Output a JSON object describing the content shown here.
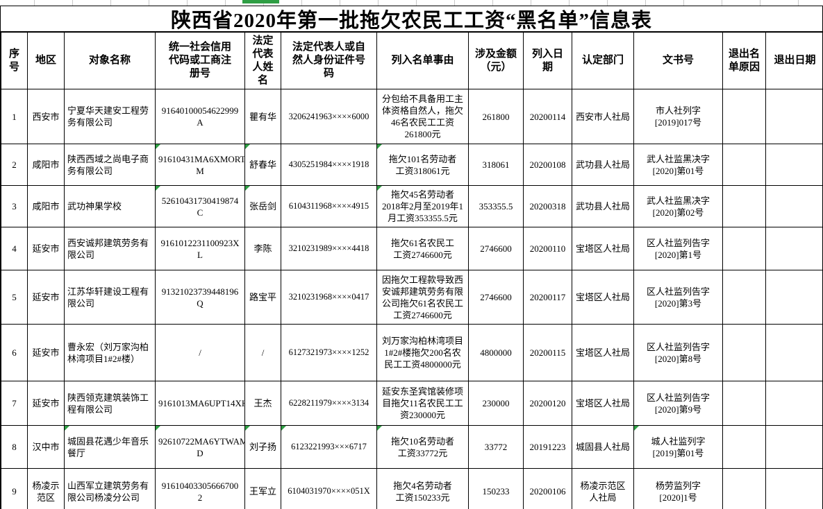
{
  "page": {
    "title": "陕西省2020年第一批拖欠农民工工资“黑名单”信息表"
  },
  "colors": {
    "marker_green": "#2f9e44",
    "edge_tick_gray": "#c9c9c9"
  },
  "table": {
    "columns": [
      {
        "label": "序号"
      },
      {
        "label": "地区"
      },
      {
        "label": "对象名称"
      },
      {
        "label": "统一社会信用代码或工商注册号"
      },
      {
        "label": "法定代表人姓名"
      },
      {
        "label": "法定代表人或自然人身份证件号码"
      },
      {
        "label": "列入名单事由"
      },
      {
        "label": "涉及金额（元）"
      },
      {
        "label": "列入日期"
      },
      {
        "label": "认定部门"
      },
      {
        "label": "文书号"
      },
      {
        "label": "退出名单原因"
      },
      {
        "label": "退出日期"
      }
    ],
    "rows": [
      {
        "no": "1",
        "region": "西安市",
        "name": "宁夏华天建安工程劳\n务有限公司",
        "code": "91640100054622999\nA",
        "legal_name": "瞿有华",
        "id_number": "3206241963××××6000",
        "reason": "分包给不具备用工主\n体资格自然人，拖欠\n46名农民工工资\n261800元",
        "amount": "261800",
        "list_date": "20200114",
        "department": "西安市人社局",
        "doc_number": "市人社列字\n[2019]017号",
        "exit_reason": "",
        "exit_date": "",
        "markers": []
      },
      {
        "no": "2",
        "region": "咸阳市",
        "name": "陕西西域之尚电子商\n务有限公司",
        "code": "91610431MA6XMORT7\nM",
        "legal_name": "舒春华",
        "id_number": "4305251984××××1918",
        "reason": "拖欠101名劳动者\n工资318061元",
        "amount": "318061",
        "list_date": "20200108",
        "department": "武功县人社局",
        "doc_number": "武人社监黑决字\n[2020]第01号",
        "exit_reason": "",
        "exit_date": "",
        "markers": [
          "code",
          "legal_name",
          "reason"
        ]
      },
      {
        "no": "3",
        "region": "咸阳市",
        "name": "武功神果学校",
        "code": "52610431730419874\nC",
        "legal_name": "张岳剑",
        "id_number": "6104311968××××4915",
        "reason": "拖欠45名劳动者\n2018年2月至2019年1\n月工资353355.5元",
        "amount": "353355.5",
        "list_date": "20200318",
        "department": "武功县人社局",
        "doc_number": "武人社监黑决字\n[2020]第02号",
        "exit_reason": "",
        "exit_date": "",
        "markers": [
          "code",
          "legal_name",
          "reason"
        ]
      },
      {
        "no": "4",
        "region": "延安市",
        "name": "西安诚邦建筑劳务有\n限公司",
        "code": "9161012231100923X\nL",
        "legal_name": "李陈",
        "id_number": "3210231989××××4418",
        "reason": "拖欠61名农民工\n工资2746600元",
        "amount": "2746600",
        "list_date": "20200110",
        "department": "宝塔区人社局",
        "doc_number": "区人社监列告字\n[2020]第1号",
        "exit_reason": "",
        "exit_date": "",
        "markers": []
      },
      {
        "no": "5",
        "region": "延安市",
        "name": "江苏华轩建设工程有\n限公司",
        "code": "91321023739448196\nQ",
        "legal_name": "路宝平",
        "id_number": "3210231968××××0417",
        "reason": "因拖欠工程款导致西\n安诚邦建筑劳务有限\n公司拖欠61名农民工\n工资2746600元",
        "amount": "2746600",
        "list_date": "20200117",
        "department": "宝塔区人社局",
        "doc_number": "区人社监列告字\n[2020]第3号",
        "exit_reason": "",
        "exit_date": "",
        "markers": []
      },
      {
        "no": "6",
        "region": "延安市",
        "name": "曹永宏（刘万家沟柏\n林湾项目1#2#楼）",
        "code": "/",
        "legal_name": "/",
        "id_number": "6127321973××××1252",
        "reason": "刘万家沟柏林湾项目\n1#2#楼拖欠200名农\n民工工资4800000元",
        "amount": "4800000",
        "list_date": "20200115",
        "department": "宝塔区人社局",
        "doc_number": "区人社监列告字\n[2020]第8号",
        "exit_reason": "",
        "exit_date": "",
        "markers": []
      },
      {
        "no": "7",
        "region": "延安市",
        "name": "陕西领克建筑装饰工\n程有限公司",
        "code": "9161013MA6UPT14XH",
        "legal_name": "王杰",
        "id_number": "6228211979××××3134",
        "reason": "延安东圣宾馆装修项\n目拖欠11名农民工工\n资230000元",
        "amount": "230000",
        "list_date": "20200120",
        "department": "宝塔区人社局",
        "doc_number": "区人社监列告字\n[2020]第9号",
        "exit_reason": "",
        "exit_date": "",
        "markers": []
      },
      {
        "no": "8",
        "region": "汉中市",
        "name": "城固县花遇少年音乐\n餐厅",
        "code": "92610722MA6YTWAM8\nD",
        "legal_name": "刘子扬",
        "id_number": "6123221993×××6717",
        "reason": "拖欠10名劳动者\n工资33772元",
        "amount": "33772",
        "list_date": "20191223",
        "department": "城固县人社局",
        "doc_number": "城人社监列字\n[2019]第01号",
        "exit_reason": "",
        "exit_date": "",
        "markers": [
          "name",
          "code",
          "legal_name",
          "id_number",
          "reason",
          "doc_number"
        ]
      },
      {
        "no": "9",
        "region": "杨凌示\n范区",
        "name": "山西军立建筑劳务有\n限公司杨凌分公司",
        "code": "91610403305666700\n2",
        "legal_name": "王军立",
        "id_number": "6104031970××××051X",
        "reason": "拖欠4名劳动者\n工资150233元",
        "amount": "150233",
        "list_date": "20200106",
        "department": "杨凌示范区\n人社局",
        "doc_number": "杨劳监列字\n[2020]1号",
        "exit_reason": "",
        "exit_date": "",
        "markers": []
      }
    ]
  }
}
